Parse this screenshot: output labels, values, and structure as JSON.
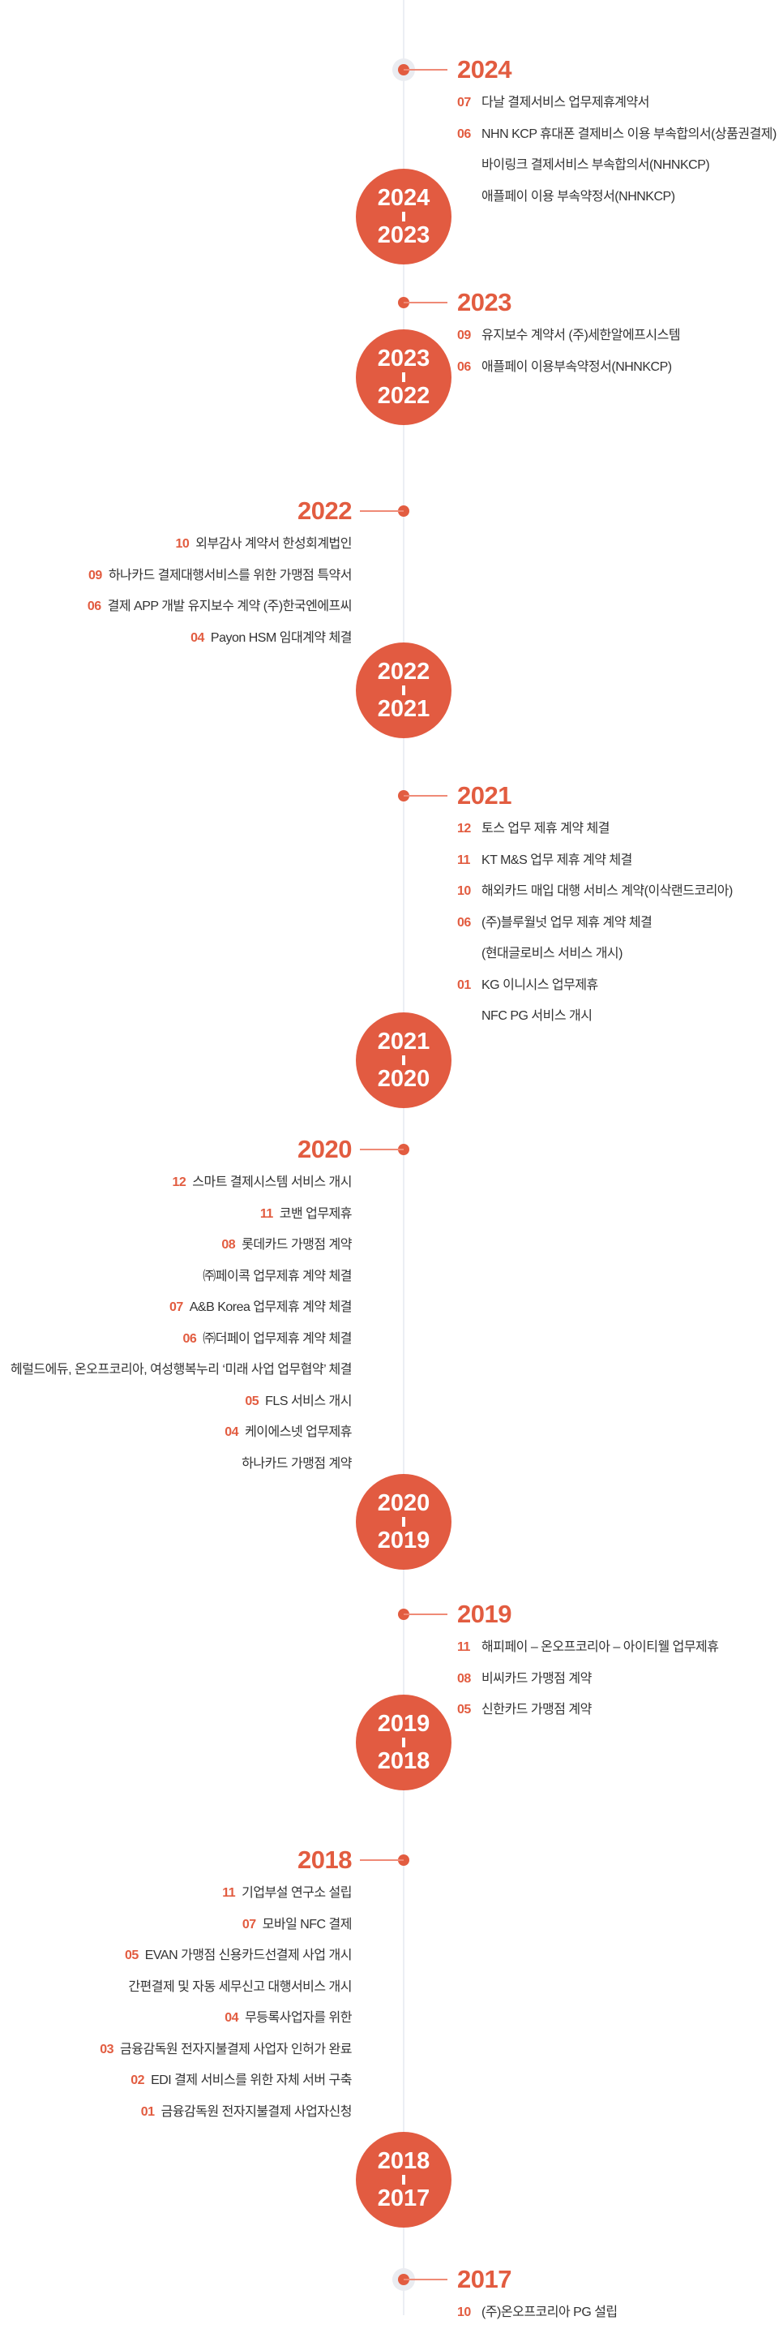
{
  "colors": {
    "accent": "#e25c40",
    "line": "#eceef4",
    "text": "#333333"
  },
  "sections": [
    {
      "year": "2024",
      "side": "right",
      "items": [
        {
          "num": "07",
          "text": "다날 결제서비스 업무제휴계약서"
        },
        {
          "num": "06",
          "text": "NHN KCP 휴대폰 결제비스 이용 부속합의서(상품권결제)"
        },
        {
          "num": "",
          "text": "바이링크 결제서비스 부속합의서(NHNKCP)"
        },
        {
          "num": "",
          "text": "애플페이 이용 부속약정서(NHNKCP)"
        }
      ]
    },
    {
      "year": "2023",
      "side": "right",
      "items": [
        {
          "num": "09",
          "text": "유지보수 계약서 (주)세한알에프시스템"
        },
        {
          "num": "06",
          "text": "애플페이 이용부속약정서(NHNKCP)"
        }
      ]
    },
    {
      "year": "2022",
      "side": "left",
      "items": [
        {
          "num": "10",
          "text": "외부감사 계약서 한성회계법인"
        },
        {
          "num": "09",
          "text": "하나카드 결제대행서비스를 위한 가맹점 특약서"
        },
        {
          "num": "06",
          "text": "결제 APP 개발 유지보수 계약 (주)한국엔에프씨"
        },
        {
          "num": "04",
          "text": "Payon HSM 임대계약 체결"
        }
      ]
    },
    {
      "year": "2021",
      "side": "right",
      "items": [
        {
          "num": "12",
          "text": "토스 업무 제휴 계약 체결"
        },
        {
          "num": "11",
          "text": "KT M&S 업무 제휴 계약 체결"
        },
        {
          "num": "10",
          "text": "해외카드 매입 대행 서비스 계약(이삭랜드코리아)"
        },
        {
          "num": "06",
          "text": "(주)블루월넛 업무 제휴 계약 체결"
        },
        {
          "num": "",
          "text": "(현대글로비스 서비스 개시)"
        },
        {
          "num": "01",
          "text": "KG 이니시스 업무제휴"
        },
        {
          "num": "",
          "text": "NFC PG 서비스 개시"
        }
      ]
    },
    {
      "year": "2020",
      "side": "left",
      "items": [
        {
          "num": "12",
          "text": "스마트 결제시스템 서비스 개시"
        },
        {
          "num": "11",
          "text": "코밴 업무제휴"
        },
        {
          "num": "08",
          "text": "롯데카드 가맹점 계약"
        },
        {
          "num": "",
          "text": "㈜페이콕 업무제휴 계약 체결"
        },
        {
          "num": "07",
          "text": "A&B Korea 업무제휴 계약 체결"
        },
        {
          "num": "06",
          "text": "㈜더페이 업무제휴 계약 체결"
        },
        {
          "num": "",
          "text": "헤럴드에듀, 온오프코리아, 여성행복누리 ‘미래 사업 업무협약’ 체결"
        },
        {
          "num": "05",
          "text": "FLS 서비스 개시"
        },
        {
          "num": "04",
          "text": "케이에스넷 업무제휴"
        },
        {
          "num": "",
          "text": "하나카드 가맹점 계약"
        }
      ]
    },
    {
      "year": "2019",
      "side": "right",
      "items": [
        {
          "num": "11",
          "text": "해피페이 – 온오프코리아 – 아이티웰 업무제휴"
        },
        {
          "num": "08",
          "text": "비씨카드 가맹점 계약"
        },
        {
          "num": "05",
          "text": "신한카드 가맹점 계약"
        }
      ]
    },
    {
      "year": "2018",
      "side": "left",
      "items": [
        {
          "num": "11",
          "text": "기업부설 연구소 설립"
        },
        {
          "num": "07",
          "text": "모바일 NFC 결제"
        },
        {
          "num": "05",
          "text": "EVAN 가맹점 신용카드선결제 사업 개시"
        },
        {
          "num": "",
          "text": "간편결제 및 자동 세무신고 대행서비스 개시"
        },
        {
          "num": "04",
          "text": "무등록사업자를 위한"
        },
        {
          "num": "03",
          "text": "금융감독원 전자지불결제 사업자 인허가 완료"
        },
        {
          "num": "02",
          "text": "EDI  결제 서비스를 위한 자체 서버 구축"
        },
        {
          "num": "01",
          "text": "금융감독원 전자지불결제 사업자신청"
        }
      ]
    },
    {
      "year": "2017",
      "side": "right",
      "items": [
        {
          "num": "10",
          "text": "(주)온오프코리아 PG 설립"
        }
      ]
    }
  ],
  "circles": [
    {
      "top": "2024",
      "bottom": "2023"
    },
    {
      "top": "2023",
      "bottom": "2022"
    },
    {
      "top": "2022",
      "bottom": "2021"
    },
    {
      "top": "2021",
      "bottom": "2020"
    },
    {
      "top": "2020",
      "bottom": "2019"
    },
    {
      "top": "2019",
      "bottom": "2018"
    },
    {
      "top": "2018",
      "bottom": "2017"
    }
  ]
}
